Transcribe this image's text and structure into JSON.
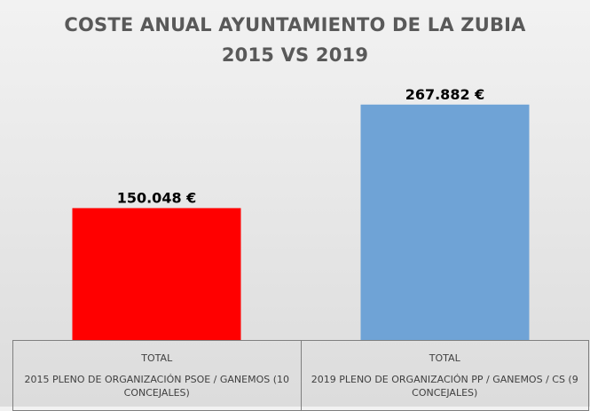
{
  "chart_data": {
    "type": "bar",
    "title": "COSTE ANUAL AYUNTAMIENTO DE LA ZUBIA",
    "subtitle": "2015 VS 2019",
    "categories": [
      {
        "group": "TOTAL",
        "label": "2015 PLENO DE ORGANIZACIÓN PSOE / GANEMOS (10 CONCEJALES)"
      },
      {
        "group": "TOTAL",
        "label": "2019 PLENO DE ORGANIZACIÓN PP / GANEMOS / CS (9 CONCEJALES)"
      }
    ],
    "values": [
      150048,
      267882
    ],
    "value_labels": [
      "150.048 €",
      "267.882 €"
    ],
    "colors": [
      "#ff0000",
      "#6fa3d6"
    ],
    "ylim": [
      0,
      300000
    ],
    "grid": false,
    "legend": "none"
  }
}
